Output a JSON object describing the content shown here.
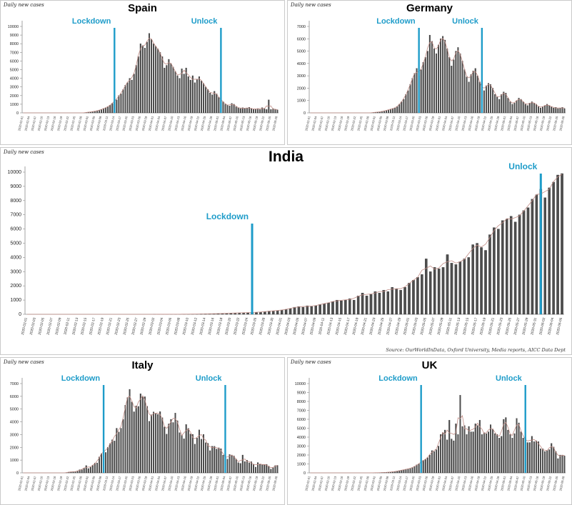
{
  "source_note": "Source: OurWorldInData, Oxford University, Media reports, AICC Data Dept",
  "colors": {
    "bar": "#4d4d4d",
    "bar_stroke": "#141414",
    "trend_line": "#c08c85",
    "annotation": "#1e9cc9",
    "axis": "#8c8c8c",
    "panel_border": "#cacaca"
  },
  "chart_data": [
    {
      "type": "bar",
      "title": "Spain",
      "corner_label": "Daily new cases",
      "x_start": "2020-02-01",
      "x_end": "2020-05-28",
      "x_tick_step_days": 3,
      "ylim": [
        0,
        10000
      ],
      "y_tick_step": 1000,
      "values": [
        0,
        0,
        0,
        0,
        0,
        0,
        0,
        0,
        0,
        0,
        0,
        0,
        0,
        0,
        0,
        0,
        0,
        0,
        0,
        0,
        0,
        0,
        0,
        0,
        0,
        0,
        0,
        0,
        15,
        50,
        80,
        100,
        150,
        200,
        250,
        300,
        400,
        500,
        600,
        700,
        900,
        1100,
        1400,
        1500,
        2000,
        2200,
        2700,
        3200,
        3500,
        4000,
        3800,
        4500,
        5500,
        6500,
        8000,
        7800,
        7500,
        8200,
        9200,
        8500,
        8000,
        7700,
        7400,
        7000,
        6500,
        5200,
        5500,
        6200,
        5700,
        5300,
        4800,
        4300,
        4000,
        5100,
        4500,
        5200,
        4200,
        3800,
        4300,
        3500,
        3900,
        4200,
        3700,
        3400,
        3000,
        2700,
        2300,
        2100,
        2500,
        2200,
        1800,
        1500,
        1300,
        1000,
        900,
        800,
        1100,
        1000,
        700,
        600,
        500,
        600,
        500,
        550,
        650,
        500,
        400,
        450,
        500,
        400,
        600,
        500,
        400,
        1500,
        400,
        500,
        400,
        350
      ],
      "annotations": [
        {
          "label": "Lockdown",
          "date": "2020-03-14",
          "label_y": 32,
          "line_top": 38
        },
        {
          "label": "Unlock",
          "date": "2020-05-02",
          "label_y": 32,
          "line_top": 38
        }
      ]
    },
    {
      "type": "bar",
      "title": "Germany",
      "corner_label": "Daily new cases",
      "x_start": "2020-02-01",
      "x_end": "2020-05-28",
      "x_tick_step_days": 3,
      "ylim": [
        0,
        7000
      ],
      "y_tick_step": 1000,
      "values": [
        0,
        0,
        0,
        0,
        0,
        0,
        0,
        0,
        0,
        0,
        0,
        0,
        0,
        0,
        0,
        0,
        0,
        0,
        0,
        0,
        0,
        0,
        0,
        0,
        0,
        0,
        0,
        0,
        10,
        30,
        50,
        60,
        80,
        120,
        150,
        200,
        250,
        300,
        350,
        400,
        500,
        700,
        900,
        1100,
        1500,
        1800,
        2300,
        2800,
        3200,
        3600,
        3000,
        3500,
        4100,
        4500,
        5000,
        6300,
        5800,
        5200,
        4800,
        5500,
        6000,
        6200,
        5900,
        5200,
        4500,
        3800,
        4300,
        5000,
        5300,
        4800,
        4200,
        3500,
        2900,
        2500,
        3100,
        3400,
        3600,
        3000,
        2500,
        2000,
        1800,
        2200,
        2400,
        2300,
        2000,
        1500,
        1300,
        1100,
        1500,
        1700,
        1600,
        1200,
        900,
        700,
        800,
        1000,
        1200,
        1100,
        900,
        700,
        600,
        800,
        900,
        800,
        700,
        500,
        400,
        500,
        600,
        700,
        600,
        500,
        400,
        450,
        350,
        400,
        450,
        350
      ],
      "annotations": [
        {
          "label": "Lockdown",
          "date": "2020-03-22",
          "label_y": 32,
          "line_top": 38
        },
        {
          "label": "Unlock",
          "date": "2020-04-20",
          "label_y": 32,
          "line_top": 38
        }
      ]
    },
    {
      "type": "bar",
      "title": "India",
      "corner_label": "Daily new cases",
      "x_start": "2020-02-01",
      "x_end": "2020-06-06",
      "x_tick_step_days": 2,
      "ylim": [
        0,
        10000
      ],
      "y_tick_step": 1000,
      "values": [
        0,
        0,
        0,
        0,
        0,
        0,
        0,
        0,
        0,
        0,
        0,
        0,
        0,
        0,
        0,
        0,
        0,
        0,
        0,
        0,
        0,
        0,
        0,
        0,
        0,
        0,
        0,
        0,
        0,
        0,
        1,
        2,
        3,
        4,
        5,
        6,
        8,
        10,
        12,
        15,
        20,
        25,
        30,
        35,
        40,
        50,
        60,
        70,
        80,
        90,
        100,
        110,
        120,
        130,
        140,
        160,
        180,
        227,
        240,
        260,
        300,
        350,
        400,
        500,
        550,
        500,
        600,
        550,
        600,
        700,
        750,
        800,
        900,
        1000,
        950,
        1000,
        1100,
        1000,
        1300,
        1500,
        1300,
        1400,
        1600,
        1500,
        1700,
        1600,
        1900,
        1800,
        1700,
        1900,
        2200,
        2400,
        2600,
        2800,
        3900,
        3000,
        3300,
        3200,
        3300,
        4200,
        3600,
        3500,
        3700,
        3900,
        4000,
        4900,
        5000,
        4700,
        4500,
        5600,
        6100,
        6000,
        6600,
        6700,
        6900,
        6500,
        7000,
        7300,
        7500,
        8100,
        8400,
        8800,
        8200,
        8900,
        9300,
        9800,
        9900
      ],
      "annotations": [
        {
          "label": "Lockdown",
          "date": "2020-03-25",
          "label_y": 100,
          "line_top": 106
        },
        {
          "label": "Unlock",
          "date": "2020-06-01",
          "label_y": 30,
          "line_top": 36
        }
      ]
    },
    {
      "type": "bar",
      "title": "Italy",
      "corner_label": "Daily new cases",
      "x_start": "2020-02-01",
      "x_end": "2020-05-28",
      "x_tick_step_days": 3,
      "ylim": [
        0,
        7000
      ],
      "y_tick_step": 1000,
      "values": [
        0,
        0,
        0,
        0,
        0,
        0,
        0,
        0,
        0,
        0,
        0,
        0,
        0,
        0,
        0,
        0,
        0,
        0,
        0,
        0,
        20,
        60,
        80,
        100,
        90,
        130,
        250,
        240,
        350,
        570,
        340,
        470,
        590,
        770,
        780,
        1250,
        1500,
        1800,
        1600,
        2000,
        2300,
        2600,
        2500,
        3500,
        3200,
        3500,
        4200,
        5300,
        5900,
        6550,
        5560,
        4790,
        5250,
        5210,
        6200,
        5960,
        5970,
        5220,
        4050,
        4550,
        4780,
        4660,
        4580,
        4800,
        4320,
        3600,
        3040,
        3840,
        4200,
        3950,
        4690,
        4090,
        3150,
        2970,
        2670,
        3790,
        3490,
        3050,
        3020,
        2260,
        2730,
        3370,
        2640,
        3020,
        2360,
        2320,
        1740,
        2090,
        2086,
        1870,
        1965,
        1900,
        1390,
        1220,
        1075,
        1444,
        1400,
        1325,
        1080,
        800,
        745,
        1400,
        890,
        990,
        790,
        875,
        675,
        450,
        810,
        665,
        640,
        650,
        670,
        530,
        300,
        400,
        580,
        590
      ],
      "annotations": [
        {
          "label": "Lockdown",
          "date": "2020-03-09",
          "label_y": 32,
          "line_top": 38
        },
        {
          "label": "Unlock",
          "date": "2020-05-04",
          "label_y": 32,
          "line_top": 38
        }
      ]
    },
    {
      "type": "bar",
      "title": "UK",
      "corner_label": "Daily new cases",
      "x_start": "2020-02-01",
      "x_end": "2020-05-28",
      "x_tick_step_days": 3,
      "ylim": [
        0,
        10000
      ],
      "y_tick_step": 1000,
      "values": [
        0,
        0,
        0,
        0,
        0,
        0,
        0,
        0,
        0,
        0,
        0,
        0,
        0,
        0,
        0,
        0,
        0,
        0,
        0,
        0,
        0,
        0,
        0,
        0,
        0,
        0,
        0,
        0,
        0,
        10,
        15,
        20,
        30,
        40,
        50,
        60,
        70,
        100,
        120,
        150,
        200,
        250,
        300,
        350,
        400,
        450,
        500,
        600,
        700,
        900,
        1000,
        1200,
        1400,
        1500,
        1700,
        2000,
        2500,
        2400,
        2600,
        3000,
        4300,
        4500,
        4800,
        3700,
        5900,
        3800,
        3600,
        5500,
        4300,
        8700,
        5200,
        5300,
        4300,
        5200,
        4600,
        4600,
        5500,
        5300,
        5900,
        4300,
        4500,
        4400,
        4600,
        5400,
        4900,
        4400,
        4300,
        3900,
        4100,
        6000,
        6200,
        4800,
        4300,
        3900,
        4400,
        6100,
        5600,
        4600,
        3900,
        3900,
        3400,
        3400,
        4100,
        3500,
        3600,
        3500,
        2700,
        2700,
        2400,
        2500,
        2600,
        3300,
        2900,
        2400,
        1600,
        2000,
        2000,
        1900
      ],
      "annotations": [
        {
          "label": "Lockdown",
          "date": "2020-03-23",
          "label_y": 32,
          "line_top": 38
        },
        {
          "label": "Unlock",
          "date": "2020-05-10",
          "label_y": 32,
          "line_top": 38
        }
      ]
    }
  ]
}
